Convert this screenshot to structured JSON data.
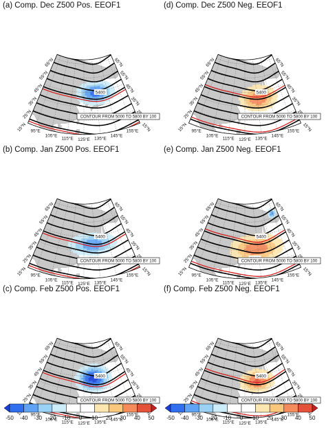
{
  "colors": {
    "land": "#c8c8c8",
    "contour": "#000000",
    "ref_contour": "#d42020"
  },
  "chart_data": {
    "type": "heatmap",
    "contour_note": "CONTOUR FROM 5000 TO 5800 BY 100",
    "lat_labels": [
      "15°N",
      "25°N",
      "35°N",
      "45°N",
      "55°N",
      "65°N"
    ],
    "lon_labels": [
      "95°E",
      "105°E",
      "115°E",
      "125°E",
      "135°E",
      "145°E",
      "155°E"
    ],
    "contour_labels": [
      "5000",
      "5400"
    ],
    "colorbar": {
      "ticks": [
        "-50",
        "-40",
        "-30",
        "-20",
        "-10",
        "0",
        "10",
        "20",
        "30",
        "40",
        "50"
      ],
      "colors": [
        "#1a3fd6",
        "#2f6ff0",
        "#5fa3f4",
        "#9ad2f6",
        "#ccecf9",
        "#ffffff",
        "#ffffff",
        "#fde7b0",
        "#fbc77d",
        "#f58a5a",
        "#e5523a",
        "#c61f1f"
      ]
    },
    "panels": [
      {
        "title": "(a) Comp. Dec Z500 Pos. EEOF1",
        "sign": -1,
        "center": [
          135,
          44
        ],
        "spread": [
          14,
          7
        ],
        "peak": 45,
        "extra": null
      },
      {
        "title": "(d) Comp. Dec Z500 Neg. EEOF1",
        "sign": 1,
        "center": [
          136,
          40
        ],
        "spread": [
          13,
          8
        ],
        "peak": 40,
        "extra": null
      },
      {
        "title": "(b) Comp. Jan Z500 Pos. EEOF1",
        "sign": -1,
        "center": [
          132,
          39
        ],
        "spread": [
          17,
          7
        ],
        "peak": 38,
        "extra": null
      },
      {
        "title": "(e) Comp. Jan Z500 Neg. EEOF1",
        "sign": 1,
        "center": [
          134,
          36
        ],
        "spread": [
          18,
          9
        ],
        "peak": 38,
        "extra": [
          154,
          58,
          -38
        ]
      },
      {
        "title": "(c) Comp. Feb Z500 Pos. EEOF1",
        "sign": -1,
        "center": [
          133,
          43
        ],
        "spread": [
          12,
          8
        ],
        "peak": 55,
        "extra": null
      },
      {
        "title": "(f) Comp. Feb Z500 Neg. EEOF1",
        "sign": 1,
        "center": [
          135,
          41
        ],
        "spread": [
          12,
          7
        ],
        "peak": 42,
        "extra": null
      }
    ]
  }
}
